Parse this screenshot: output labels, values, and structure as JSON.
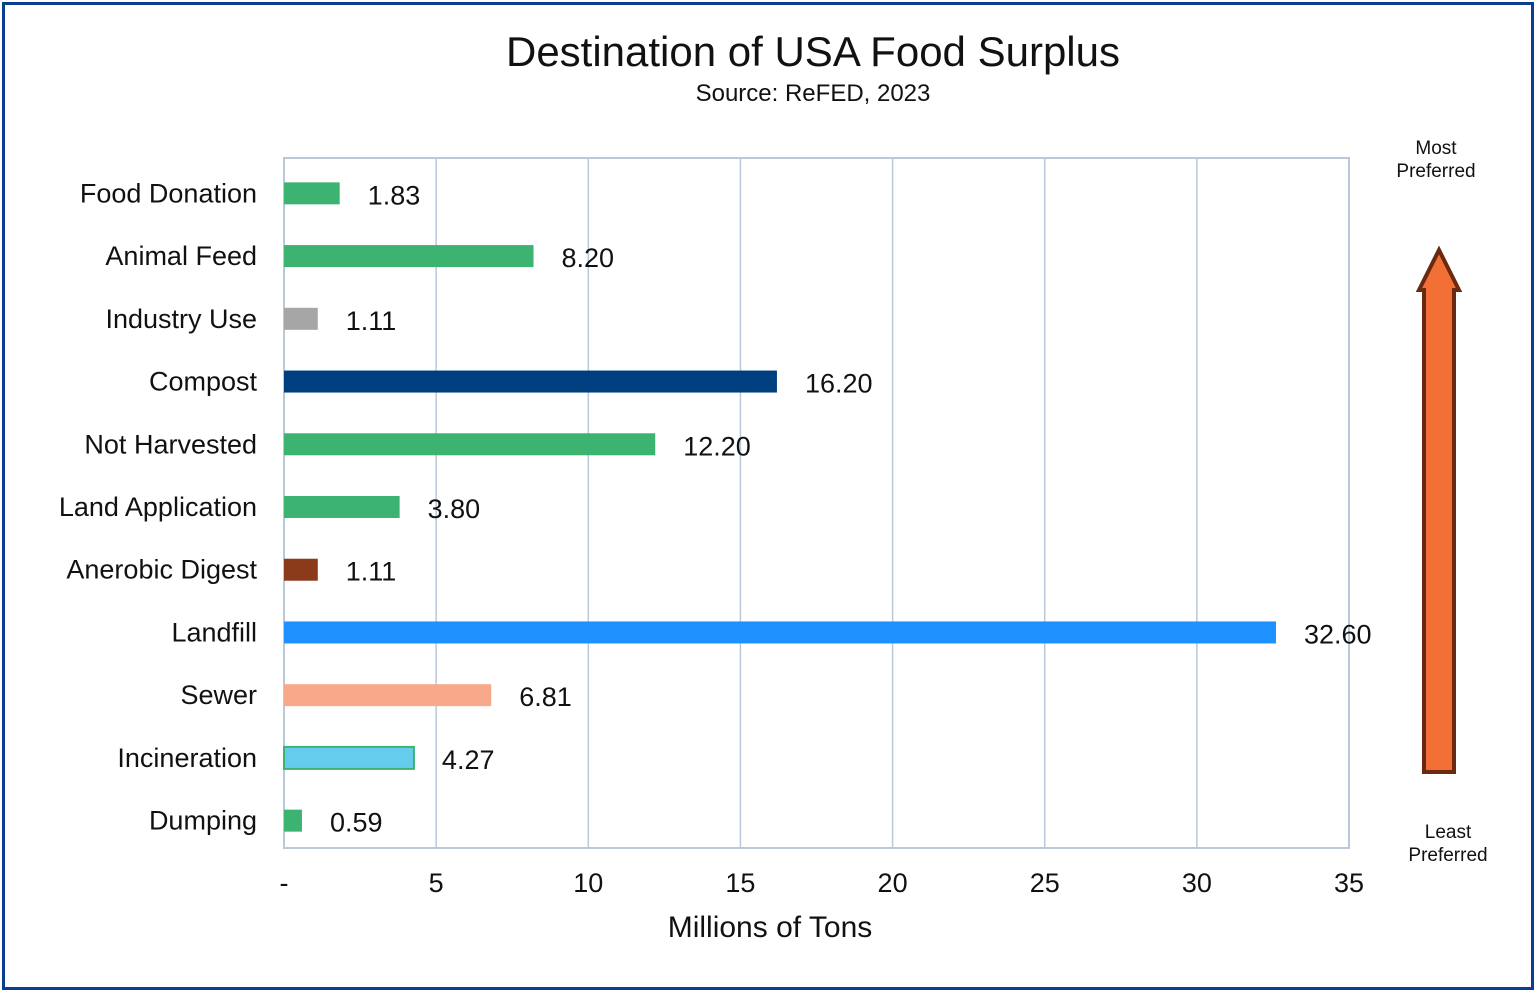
{
  "chart_data": {
    "type": "bar",
    "orientation": "horizontal",
    "title": "Destination of USA Food Surplus",
    "subtitle": "Source: ReFED, 2023",
    "xlabel": "Millions of Tons",
    "ylabel": "",
    "xlim": [
      0,
      35
    ],
    "x_ticks": [
      0,
      5,
      10,
      15,
      20,
      25,
      30,
      35
    ],
    "x_tick_labels": [
      "-",
      "5",
      "10",
      "15",
      "20",
      "25",
      "30",
      "35"
    ],
    "grid": true,
    "categories": [
      "Food Donation",
      "Animal Feed",
      "Industry Use",
      "Compost",
      "Not Harvested",
      "Land Application",
      "Anerobic Digest",
      "Landfill",
      "Sewer",
      "Incineration",
      "Dumping"
    ],
    "values": [
      1.83,
      8.2,
      1.11,
      16.2,
      12.2,
      3.8,
      1.11,
      32.6,
      6.81,
      4.27,
      0.59
    ],
    "value_labels": [
      "1.83",
      "8.20",
      "1.11",
      "16.20",
      "12.20",
      "3.80",
      "1.11",
      "32.60",
      "6.81",
      "4.27",
      "0.59"
    ],
    "colors": [
      "#3cb371",
      "#3cb371",
      "#a6a6a6",
      "#003f7f",
      "#3cb371",
      "#3cb371",
      "#8b3a1a",
      "#1e90ff",
      "#f7a98a",
      "#66ccee",
      "#3cb371"
    ],
    "bar_outline": [
      "",
      "",
      "",
      "",
      "",
      "",
      "",
      "",
      "",
      "#3cb371",
      ""
    ],
    "annotations": {
      "top": [
        "Most",
        "Preferred"
      ],
      "bottom": [
        "Least",
        "Preferred"
      ],
      "arrow_fill": "#f26f35",
      "arrow_stroke": "#6b2a10"
    }
  }
}
